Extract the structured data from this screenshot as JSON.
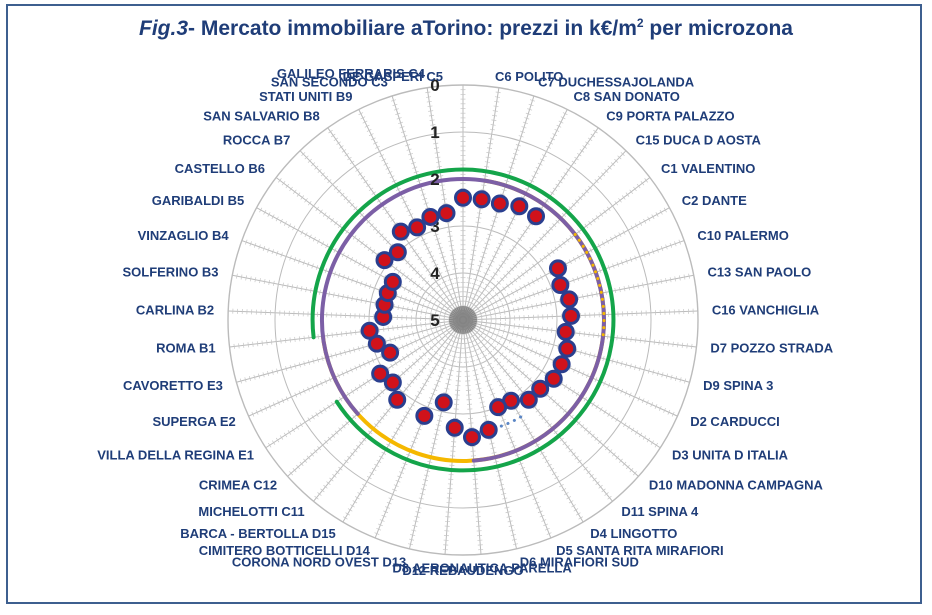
{
  "title": {
    "fig": "Fig.3",
    "dash": "-",
    "text": " Mercato immobiliare aTorino: prezzi in k€/m",
    "sup": "2",
    "after": " per microzona"
  },
  "colors": {
    "frame": "#3d5f8f",
    "title": "#1f3d78",
    "label": "#1f3d78",
    "marker_fill": "#d0121b",
    "marker_edge": "#2a3f8f",
    "grid": "#bbbbbb",
    "center": "#555555",
    "arc_yellow": "#f5b800",
    "arc_green": "#14a54a",
    "arc_purple": "#7c5fa6",
    "dotted_yellow": "#f5b800",
    "dotted_blue": "#5b86c5",
    "dotted_purple": "#7c5fa6"
  },
  "chart_data": {
    "type": "radar",
    "title": "Mercato immobiliare aTorino: prezzi in k€/m2 per microzona",
    "axis_direction": "reversed",
    "rlim": [
      0,
      5
    ],
    "rticks": [
      "0",
      "1",
      "2",
      "3",
      "4",
      "5"
    ],
    "grid": true,
    "categories": [
      "DE GASPERI C5",
      "C6 POLITO",
      "C7 DUCHESSA JOLANDA",
      "C8 SAN DONATO",
      "C9 PORTA PALAZZO",
      "C15 DUCA D AOSTA",
      "C1 VALENTINO",
      "C2 DANTE",
      "C10 PALERMO",
      "C13 SAN PAOLO",
      "C16 VANCHIGLIA",
      "D7 POZZO STRADA",
      "D9 SPINA 3",
      "D2 CARDUCCI",
      "D3 UNITA D ITALIA",
      "D10 MADONNA CAMPAGNA",
      "D11 SPINA 4",
      "D4 LINGOTTO",
      "D5 SANTA RITA MIRAFIORI",
      "D6 MIRAFIORI SUD",
      "D8 AERONAUTICA PARELLA",
      "D12 REBAUDENGO",
      "CORONA NORD OVEST D13",
      "CIMITERO BOTTICELLI D14",
      "BARCA - BERTOLLA D15",
      "MICHELOTTI C11",
      "CRIMEA C12",
      "VILLA DELLA REGINA E1",
      "SUPERGA E2",
      "CAVORETTO E3",
      "ROMA B1",
      "CARLINA B2",
      "SOLFERINO B3",
      "VINZAGLIO B4",
      "GARIBALDI B5",
      "CASTELLO B6",
      "ROCCA B7",
      "SAN SALVARIO B8",
      "STATI UNITI B9",
      "SAN SECONDO C3",
      "GALILEO FERRARIS C4"
    ],
    "display_labels": [
      "DE GASPERI C5",
      "C6 POLITO",
      "C7 DUCHESSAJOLANDA",
      "C8 SAN DONATO",
      "C9 PORTA PALAZZO",
      "C15 DUCA D AOSTA",
      "C1 VALENTINO",
      "C2 DANTE",
      "C10 PALERMO",
      "C13 SAN PAOLO",
      "C16 VANCHIGLIA",
      "D7 POZZO STRADA",
      "D9 SPINA 3",
      "D2 CARDUCCI",
      "D3 UNITA D ITALIA",
      "D10 MADONNA CAMPAGNA",
      "D11 SPINA 4",
      "D4 LINGOTTO",
      "D5 SANTA RITA  MIRAFIORI",
      "D6 MIRAFIORI SUD",
      "D8 AERONAUTICA PARELLA",
      "D12 REBAUDENGO",
      "CORONA NORD OVEST D13",
      "CIMITERO  BOTTICELLI D14",
      "BARCA - BERTOLLA D15",
      "MICHELOTTI C11",
      "CRIMEA C12",
      "VILLA DELLA REGINA E1",
      "SUPERGA E2",
      "CAVORETTO E3",
      "ROMA B1",
      "CARLINA B2",
      "SOLFERINO B3",
      "VINZAGLIO B4",
      "GARIBALDI B5",
      "CASTELLO B6",
      "ROCCA B7",
      "SAN SALVARIO B8",
      "STATI UNITI B9",
      "SAN SECONDO C3",
      "GALILEO FERRARIS C4"
    ],
    "series": [
      {
        "values": [
          2.4,
          2.4,
          2.4,
          2.3,
          2.3,
          null,
          null,
          2.7,
          2.8,
          2.7,
          2.7,
          2.8,
          2.7,
          2.7,
          2.7,
          2.8,
          2.8,
          3.0,
          3.0,
          2.6,
          2.5,
          2.7,
          3.2,
          2.8,
          null,
          2.8,
          3.0,
          2.9,
          3.3,
          3.1,
          3.0,
          3.3,
          3.3,
          3.3,
          3.3,
          2.9,
          3.0,
          2.7,
          2.8,
          2.7,
          2.7
        ]
      }
    ],
    "annotations": [
      {
        "kind": "solid-arc",
        "color": "yellow",
        "r": 2.0,
        "from": "C6 POLITO",
        "to": "ROMA B1"
      },
      {
        "kind": "solid-arc",
        "color": "green",
        "r": 1.8,
        "from": "ROMA B1",
        "to": "VILLA DELLA REGINA E1"
      },
      {
        "kind": "solid-arc",
        "color": "purple",
        "r": 2.0,
        "from": "CRIMEA C12",
        "to": "D8 AERONAUTICA PARELLA"
      },
      {
        "kind": "dotted-arc",
        "color": "yellow",
        "r": 2.0,
        "from": "C1 VALENTINO",
        "to": "D7 POZZO STRADA"
      },
      {
        "kind": "dotted-arc",
        "color": "blue",
        "r": 2.6,
        "from": "D4 LINGOTTO",
        "to": "D12 REBAUDENGO"
      },
      {
        "kind": "dotted-arc",
        "color": "purple",
        "r": 2.0,
        "from": "D5 SANTA RITA MIRAFIORI",
        "to": "D8 AERONAUTICA PARELLA"
      }
    ]
  }
}
